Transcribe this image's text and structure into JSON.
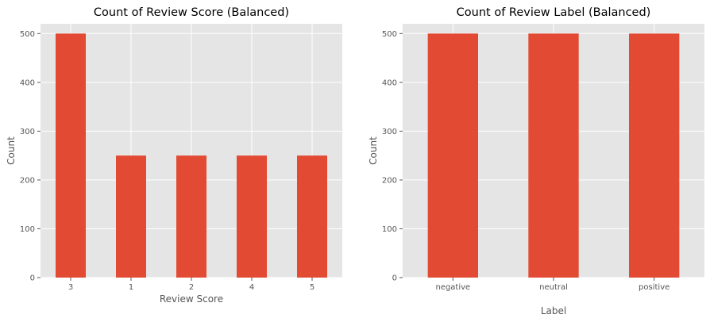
{
  "chart_data": [
    {
      "type": "bar",
      "title": "Count of Review Score (Balanced)",
      "xlabel": "Review Score",
      "ylabel": "Count",
      "categories": [
        "3",
        "1",
        "2",
        "4",
        "5"
      ],
      "values": [
        500,
        250,
        250,
        250,
        250
      ],
      "ylim": [
        0,
        520
      ],
      "yticks": [
        "0",
        "100",
        "200",
        "300",
        "400",
        "500"
      ],
      "grid": true,
      "bar_color": "#E24A33",
      "background": "#E5E5E5",
      "grid_color": "#FFFFFF"
    },
    {
      "type": "bar",
      "title": "Count of Review Label (Balanced)",
      "xlabel": "Label",
      "ylabel": "Count",
      "categories": [
        "negative",
        "neutral",
        "positive"
      ],
      "values": [
        500,
        500,
        500
      ],
      "ylim": [
        0,
        520
      ],
      "yticks": [
        "0",
        "100",
        "200",
        "300",
        "400",
        "500"
      ],
      "grid": true,
      "bar_color": "#E24A33",
      "background": "#E5E5E5",
      "grid_color": "#FFFFFF"
    }
  ]
}
